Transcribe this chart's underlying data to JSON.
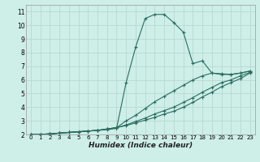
{
  "bg_color": "#ceeee8",
  "grid_color": "#b8d8d2",
  "line_color": "#2a6e60",
  "xlabel": "Humidex (Indice chaleur)",
  "xlim": [
    -0.5,
    23.5
  ],
  "ylim": [
    2,
    11.5
  ],
  "xticks": [
    0,
    1,
    2,
    3,
    4,
    5,
    6,
    7,
    8,
    9,
    10,
    11,
    12,
    13,
    14,
    15,
    16,
    17,
    18,
    19,
    20,
    21,
    22,
    23
  ],
  "yticks": [
    2,
    3,
    4,
    5,
    6,
    7,
    8,
    9,
    10,
    11
  ],
  "line1_x": [
    0,
    1,
    2,
    3,
    4,
    5,
    6,
    7,
    8,
    9,
    10,
    11,
    12,
    13,
    14,
    15,
    16,
    17,
    18,
    19,
    20,
    21,
    22,
    23
  ],
  "line1_y": [
    2.0,
    2.0,
    2.0,
    2.1,
    2.15,
    2.2,
    2.25,
    2.3,
    2.35,
    2.45,
    5.8,
    8.4,
    10.5,
    10.8,
    10.8,
    10.2,
    9.5,
    7.2,
    7.4,
    6.5,
    6.4,
    6.4,
    6.5,
    6.65
  ],
  "line2_x": [
    0,
    1,
    2,
    3,
    4,
    5,
    6,
    7,
    8,
    9,
    10,
    11,
    12,
    13,
    14,
    15,
    16,
    17,
    18,
    19,
    20,
    21,
    22,
    23
  ],
  "line2_y": [
    2.0,
    2.0,
    2.05,
    2.1,
    2.15,
    2.2,
    2.25,
    2.3,
    2.4,
    2.5,
    3.0,
    3.4,
    3.9,
    4.4,
    4.8,
    5.2,
    5.6,
    6.0,
    6.3,
    6.5,
    6.45,
    6.4,
    6.5,
    6.65
  ],
  "line3_x": [
    0,
    1,
    2,
    3,
    4,
    5,
    6,
    7,
    8,
    9,
    10,
    11,
    12,
    13,
    14,
    15,
    16,
    17,
    18,
    19,
    20,
    21,
    22,
    23
  ],
  "line3_y": [
    2.0,
    2.0,
    2.05,
    2.1,
    2.15,
    2.2,
    2.25,
    2.3,
    2.4,
    2.5,
    2.7,
    2.95,
    3.2,
    3.5,
    3.75,
    4.0,
    4.35,
    4.7,
    5.1,
    5.45,
    5.8,
    6.0,
    6.3,
    6.55
  ],
  "line4_x": [
    0,
    1,
    2,
    3,
    4,
    5,
    6,
    7,
    8,
    9,
    10,
    11,
    12,
    13,
    14,
    15,
    16,
    17,
    18,
    19,
    20,
    21,
    22,
    23
  ],
  "line4_y": [
    2.0,
    2.0,
    2.05,
    2.1,
    2.15,
    2.2,
    2.25,
    2.3,
    2.4,
    2.5,
    2.65,
    2.85,
    3.05,
    3.25,
    3.5,
    3.7,
    4.0,
    4.35,
    4.75,
    5.1,
    5.5,
    5.8,
    6.1,
    6.5
  ]
}
